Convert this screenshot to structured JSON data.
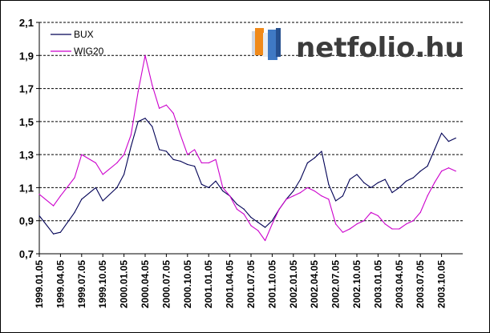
{
  "watermark": {
    "text": "netfolio.hu",
    "icon": "bar-chart-logo-icon"
  },
  "chart_data": {
    "type": "line",
    "title": "",
    "xlabel": "",
    "ylabel": "",
    "ylim": [
      0.7,
      2.1
    ],
    "yticks": [
      "0,7",
      "0,9",
      "1,1",
      "1,3",
      "1,5",
      "1,7",
      "1,9",
      "2,1"
    ],
    "ytick_values": [
      0.7,
      0.9,
      1.1,
      1.3,
      1.5,
      1.7,
      1.9,
      2.1
    ],
    "grid": "horizontal dashed",
    "legend": "top-left",
    "xtick_labels": [
      "1999.01.05",
      "1999.04.05",
      "1999.07.05",
      "1999.10.05",
      "2000.01.05",
      "2000.04.05",
      "2000.07.05",
      "2000.10.05",
      "2001.01.05",
      "2001.04.05",
      "2001.07.05",
      "2001.10.05",
      "2002.01.05",
      "2002.04.05",
      "2002.07.05",
      "2002.10.05",
      "2003.01.05",
      "2003.04.05",
      "2003.07.05",
      "2003.10.05"
    ],
    "x": [
      "1999.01",
      "1999.03",
      "1999.04",
      "1999.06",
      "1999.07",
      "1999.09",
      "1999.10",
      "1999.12",
      "2000.01",
      "2000.02",
      "2000.03",
      "2000.04",
      "2000.05",
      "2000.06",
      "2000.07",
      "2000.08",
      "2000.09",
      "2000.10",
      "2000.11",
      "2000.12",
      "2001.01",
      "2001.02",
      "2001.03",
      "2001.04",
      "2001.05",
      "2001.06",
      "2001.07",
      "2001.08",
      "2001.09",
      "2001.10",
      "2001.11",
      "2001.12",
      "2002.01",
      "2002.02",
      "2002.03",
      "2002.04",
      "2002.05",
      "2002.06",
      "2002.07",
      "2002.08",
      "2002.09",
      "2002.10",
      "2002.11",
      "2002.12",
      "2003.01",
      "2003.02",
      "2003.03",
      "2003.04",
      "2003.05",
      "2003.06",
      "2003.07",
      "2003.08",
      "2003.09",
      "2003.10",
      "2003.11",
      "2003.12"
    ],
    "series": [
      {
        "name": "BUX",
        "color": "#000055",
        "values": [
          0.93,
          0.82,
          0.83,
          0.95,
          1.03,
          1.1,
          1.02,
          1.1,
          1.18,
          1.35,
          1.5,
          1.52,
          1.47,
          1.33,
          1.32,
          1.27,
          1.26,
          1.24,
          1.23,
          1.12,
          1.1,
          1.14,
          1.08,
          1.05,
          1.0,
          0.97,
          0.92,
          0.89,
          0.86,
          0.9,
          0.97,
          1.03,
          1.08,
          1.15,
          1.25,
          1.28,
          1.32,
          1.12,
          1.02,
          1.05,
          1.15,
          1.18,
          1.13,
          1.1,
          1.13,
          1.15,
          1.07,
          1.1,
          1.14,
          1.16,
          1.2,
          1.23,
          1.33,
          1.43,
          1.38,
          1.4
        ]
      },
      {
        "name": "WIG20",
        "color": "#cc00cc",
        "values": [
          1.06,
          0.99,
          1.05,
          1.16,
          1.3,
          1.25,
          1.18,
          1.25,
          1.3,
          1.42,
          1.68,
          1.9,
          1.72,
          1.58,
          1.6,
          1.55,
          1.42,
          1.3,
          1.33,
          1.25,
          1.25,
          1.27,
          1.1,
          1.05,
          0.97,
          0.94,
          0.87,
          0.84,
          0.78,
          0.88,
          0.97,
          1.03,
          1.05,
          1.07,
          1.1,
          1.08,
          1.05,
          1.03,
          0.88,
          0.83,
          0.85,
          0.88,
          0.9,
          0.95,
          0.93,
          0.88,
          0.85,
          0.85,
          0.88,
          0.9,
          0.95,
          1.05,
          1.13,
          1.2,
          1.22,
          1.2
        ]
      }
    ]
  }
}
